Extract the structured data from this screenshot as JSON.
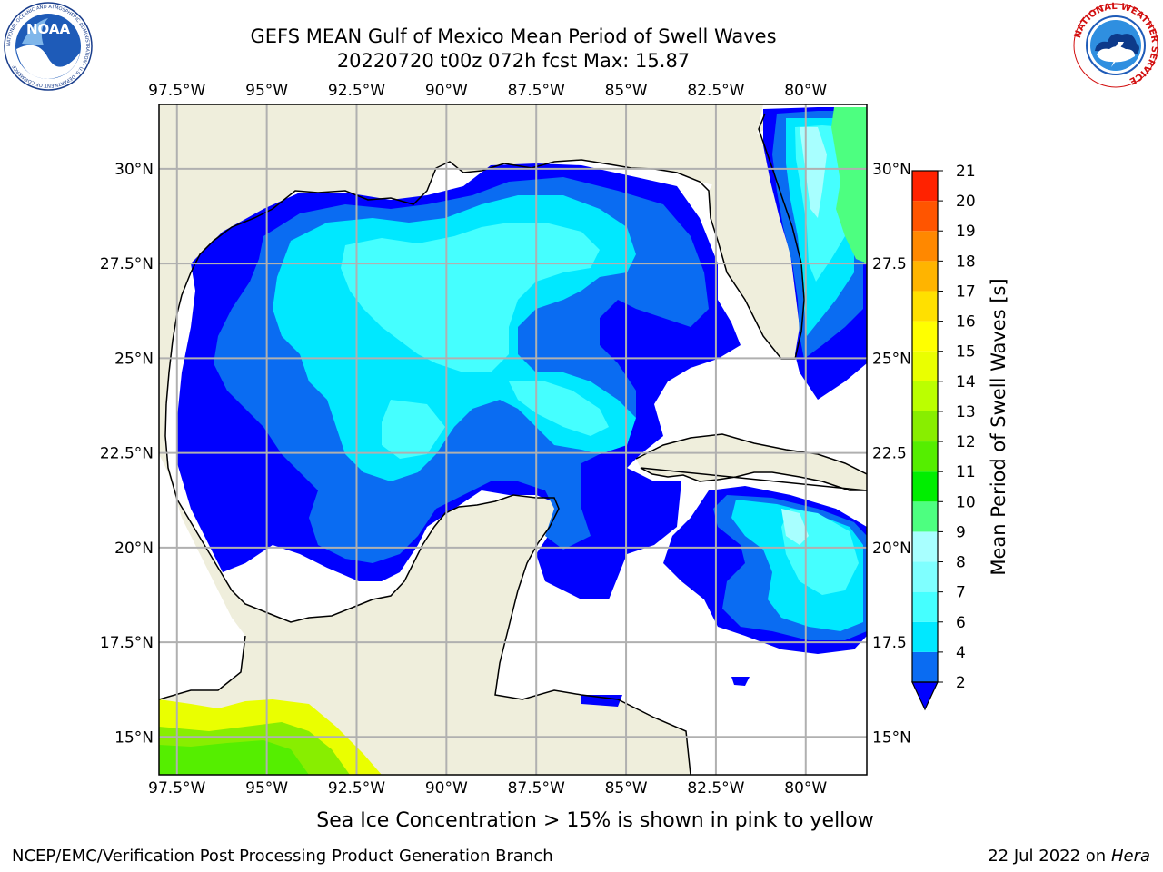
{
  "header": {
    "title_line1": "GEFS MEAN Gulf of Mexico Mean Period of Swell Waves",
    "title_line2": "20220720 t00z 072h fcst   Max: 15.87"
  },
  "logos": {
    "left": {
      "name": "NOAA",
      "ring_text": "NATIONAL OCEANIC AND ATMOSPHERIC ADMINISTRATION · U.S. DEPARTMENT OF COMMERCE"
    },
    "right": {
      "ring_text": "NATIONAL WEATHER SERVICE"
    }
  },
  "map": {
    "lon_labels": [
      "97.5°W",
      "95°W",
      "92.5°W",
      "90°W",
      "87.5°W",
      "85°W",
      "82.5°W",
      "80°W"
    ],
    "lat_labels_left": [
      "30°N",
      "27.5°N",
      "25°N",
      "22.5°N",
      "20°N",
      "17.5°N",
      "15°N"
    ],
    "lat_labels_right": [
      "30°N",
      "27.5",
      "25°N",
      "22.5",
      "20°N",
      "17.5",
      "15°N"
    ],
    "lon_values": [
      -97.5,
      -95,
      -92.5,
      -90,
      -87.5,
      -85,
      -82.5,
      -80
    ],
    "lat_values": [
      30,
      27.5,
      25,
      22.5,
      20,
      17.5,
      15
    ],
    "extent": {
      "lon_min": -98,
      "lon_max": -78.3,
      "lat_min": 14,
      "lat_max": 31.7
    },
    "land_color": "#efeedc",
    "ocean_color": "#ffffff",
    "grid_color": "#b0b0b0",
    "gridlines": true
  },
  "colorbar": {
    "label": "Mean Period of Swell Waves [s]",
    "ticks": [
      "2",
      "4",
      "6",
      "7",
      "8",
      "9",
      "10",
      "11",
      "12",
      "13",
      "14",
      "15",
      "16",
      "17",
      "18",
      "19",
      "20",
      "21"
    ],
    "colors": [
      "#0a6cf2",
      "#00e8ff",
      "#45ffff",
      "#7fffff",
      "#a8ffff",
      "#4dff80",
      "#00ee00",
      "#55ee00",
      "#88ee00",
      "#bbff00",
      "#eaff00",
      "#ffff00",
      "#ffe000",
      "#ffb400",
      "#ff8800",
      "#ff5500",
      "#ff2200",
      "#ff0000"
    ],
    "under_color": "#0000ff"
  },
  "footer": {
    "note": "Sea Ice Concentration > 15% is shown in pink to yellow",
    "left": "NCEP/EMC/Verification Post Processing Product Generation Branch",
    "right_date": "22 Jul 2022 on ",
    "right_host": "Hera"
  }
}
